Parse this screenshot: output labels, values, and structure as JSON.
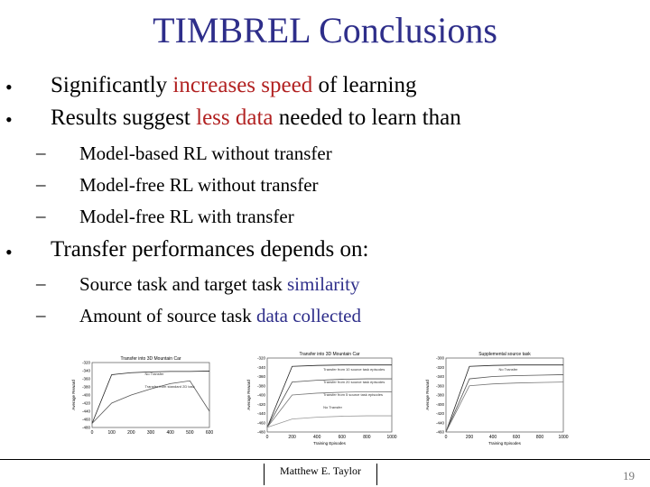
{
  "title": "TIMBREL Conclusions",
  "bullets": [
    {
      "before": "Significantly ",
      "highlight": "increases speed",
      "after": " of learning"
    },
    {
      "before": "Results suggest ",
      "highlight": "less data",
      "after": " needed to learn than"
    }
  ],
  "subbullets_1": [
    "Model-based RL without transfer",
    "Model-free RL without transfer",
    "Model-free RL with transfer"
  ],
  "bullet3": "Transfer performances depends on:",
  "subbullets_2": [
    {
      "before": "Source task and target task ",
      "highlight": "similarity"
    },
    {
      "before": "Amount of source task ",
      "highlight": "data collected"
    }
  ],
  "colors": {
    "title": "#2e2e8a",
    "red_highlight": "#b22222",
    "blue_highlight": "#2e2e8a"
  },
  "chart_data": [
    {
      "type": "line",
      "title": "Transfer into 3D Mountain Car",
      "ylabel": "Average Reward",
      "x": [
        0,
        100,
        200,
        300,
        400,
        500,
        600
      ],
      "xticks": [
        "0",
        "100",
        "200",
        "300",
        "400",
        "500",
        "600"
      ],
      "yticks": [
        "-320",
        "-340",
        "-360",
        "-380",
        "-400",
        "-420",
        "-440",
        "-460",
        "-480"
      ],
      "ylim": [
        -480,
        -320
      ],
      "annotations": [
        "No Transfer",
        "Transfer from standard 2D task"
      ],
      "series": [
        {
          "values": [
            -470,
            -350,
            -345,
            -343,
            -342,
            -342,
            -341
          ]
        },
        {
          "values": [
            -470,
            -420,
            -400,
            -385,
            -372,
            -365,
            -440
          ]
        }
      ]
    },
    {
      "type": "line",
      "title": "Transfer into 3D Mountain Car",
      "xlabel": "Training Episodes",
      "ylabel": "Average Reward",
      "x": [
        0,
        200,
        400,
        600,
        800,
        1000
      ],
      "xticks": [
        "0",
        "200",
        "400",
        "600",
        "800",
        "1000"
      ],
      "yticks": [
        "-320",
        "-340",
        "-360",
        "-380",
        "-400",
        "-420",
        "-440",
        "-460",
        "-480"
      ],
      "ylim": [
        -480,
        -320
      ],
      "annotations": [
        "Transfer from 10 source task episodes",
        "Transfer from 20 source task episodes",
        "Transfer from 5 source task episodes",
        "No Transfer"
      ],
      "series": [
        {
          "values": [
            -470,
            -338,
            -336,
            -335,
            -335,
            -335
          ]
        },
        {
          "values": [
            -470,
            -372,
            -368,
            -366,
            -365,
            -365
          ]
        },
        {
          "values": [
            -470,
            -400,
            -396,
            -394,
            -393,
            -393
          ]
        },
        {
          "values": [
            -470,
            -452,
            -448,
            -446,
            -445,
            -445
          ]
        }
      ]
    },
    {
      "type": "line",
      "title": "Supplemental source task",
      "xlabel": "Training Episodes",
      "ylabel": "Average Reward",
      "x": [
        0,
        200,
        400,
        600,
        800,
        1000
      ],
      "xticks": [
        "0",
        "200",
        "400",
        "600",
        "800",
        "1000"
      ],
      "yticks": [
        "-300",
        "-320",
        "-340",
        "-360",
        "-380",
        "-400",
        "-420",
        "-440",
        "-460"
      ],
      "ylim": [
        -460,
        -300
      ],
      "annotations": [
        "No Transfer"
      ],
      "series": [
        {
          "values": [
            -460,
            -318,
            -316,
            -315,
            -315,
            -315
          ]
        },
        {
          "values": [
            -460,
            -345,
            -340,
            -338,
            -337,
            -336
          ]
        },
        {
          "values": [
            -460,
            -360,
            -356,
            -354,
            -353,
            -352
          ]
        }
      ]
    }
  ],
  "footer": {
    "author": "Matthew E. Taylor",
    "page": "19"
  }
}
